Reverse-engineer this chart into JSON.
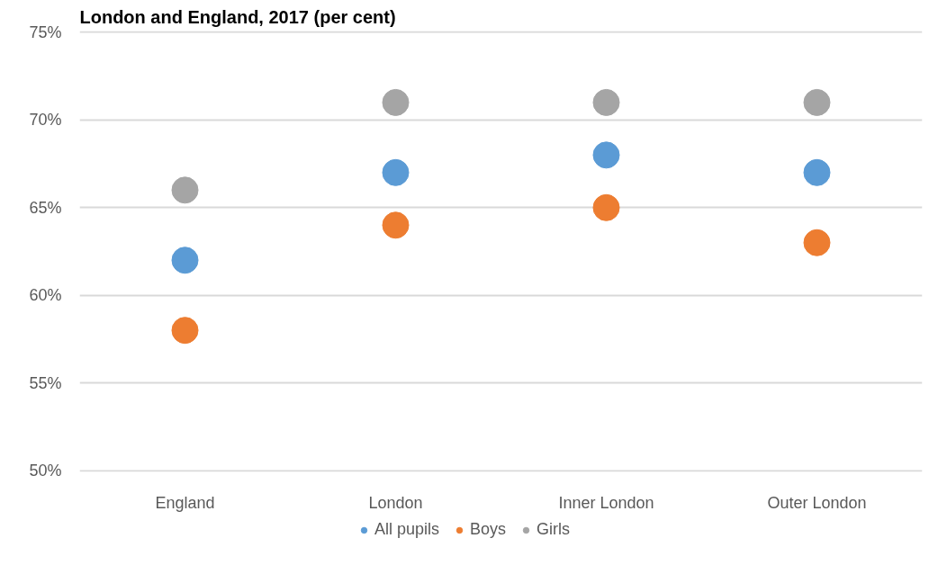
{
  "chart_data": {
    "type": "scatter",
    "title": "London and England, 2017 (per cent)",
    "categories": [
      "England",
      "London",
      "Inner London",
      "Outer London"
    ],
    "series": [
      {
        "name": "All pupils",
        "color": "#5b9bd5",
        "values": [
          62,
          67,
          68,
          67
        ]
      },
      {
        "name": "Boys",
        "color": "#ed7d31",
        "values": [
          58,
          64,
          65,
          63
        ]
      },
      {
        "name": "Girls",
        "color": "#a5a5a5",
        "values": [
          66,
          71,
          71,
          71
        ]
      }
    ],
    "ylim": [
      50,
      75
    ],
    "yticks": [
      {
        "value": 50,
        "label": "50%"
      },
      {
        "value": 55,
        "label": "55%"
      },
      {
        "value": 60,
        "label": "60%"
      },
      {
        "value": 65,
        "label": "65%"
      },
      {
        "value": 70,
        "label": "70%"
      },
      {
        "value": 75,
        "label": "75%"
      }
    ],
    "grid": "y",
    "legend": "bottom",
    "marker": "circle"
  }
}
